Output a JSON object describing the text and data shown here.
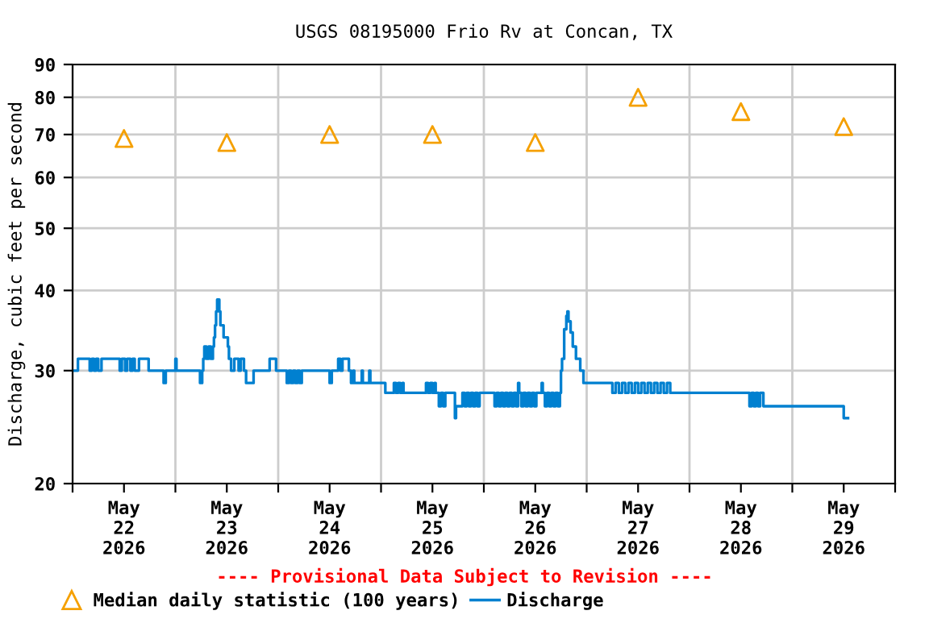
{
  "chart_data": {
    "type": "step",
    "title": "USGS 08195000 Frio Rv at Concan, TX",
    "ylabel": "Discharge, cubic feet per second",
    "annotations": [
      "---- Provisional Data Subject to Revision ----"
    ],
    "log": "y",
    "grid": true,
    "legend": "bottom",
    "ylim": [
      20,
      90
    ],
    "yticks": [
      20,
      30,
      40,
      50,
      60,
      70,
      80,
      90
    ],
    "xlim": [
      "2026-05-22T00:00",
      "2026-05-30T00:00"
    ],
    "xticks": [
      {
        "value": "2026-05-22T00:00",
        "label": null
      },
      {
        "value": "2026-05-22T12:00",
        "label": "May\n22\n2026"
      },
      {
        "value": "2026-05-23T00:00",
        "label": null
      },
      {
        "value": "2026-05-23T12:00",
        "label": "May\n23\n2026"
      },
      {
        "value": "2026-05-24T00:00",
        "label": null
      },
      {
        "value": "2026-05-24T12:00",
        "label": "May\n24\n2026"
      },
      {
        "value": "2026-05-25T00:00",
        "label": null
      },
      {
        "value": "2026-05-25T12:00",
        "label": "May\n25\n2026"
      },
      {
        "value": "2026-05-26T00:00",
        "label": null
      },
      {
        "value": "2026-05-26T12:00",
        "label": "May\n26\n2026"
      },
      {
        "value": "2026-05-27T00:00",
        "label": null
      },
      {
        "value": "2026-05-27T12:00",
        "label": "May\n27\n2026"
      },
      {
        "value": "2026-05-28T00:00",
        "label": null
      },
      {
        "value": "2026-05-28T12:00",
        "label": "May\n28\n2026"
      },
      {
        "value": "2026-05-29T00:00",
        "label": null
      },
      {
        "value": "2026-05-29T12:00",
        "label": "May\n29\n2026"
      },
      {
        "value": "2026-05-30T00:00",
        "label": null
      }
    ],
    "series": [
      {
        "name": "Median daily statistic (100 years)",
        "type": "scatter",
        "marker": "triangle",
        "color": "#f5a000",
        "x": [
          "2026-05-22T12:00",
          "2026-05-23T12:00",
          "2026-05-24T12:00",
          "2026-05-25T12:00",
          "2026-05-26T12:00",
          "2026-05-27T12:00",
          "2026-05-28T12:00",
          "2026-05-29T12:00"
        ],
        "values": [
          69,
          68,
          70,
          70,
          68,
          80,
          76,
          72
        ]
      },
      {
        "name": "Discharge",
        "marker": "none",
        "color": "#0080d0",
        "x": [
          "2026-05-22T00:00",
          "2026-05-22T01:15",
          "2026-05-22T04:00",
          "2026-05-22T04:30",
          "2026-05-22T05:00",
          "2026-05-22T05:30",
          "2026-05-22T06:00",
          "2026-05-22T06:45",
          "2026-05-22T11:00",
          "2026-05-22T11:30",
          "2026-05-22T12:15",
          "2026-05-22T12:45",
          "2026-05-22T13:30",
          "2026-05-22T14:00",
          "2026-05-22T14:30",
          "2026-05-22T15:30",
          "2026-05-22T17:45",
          "2026-05-22T21:15",
          "2026-05-22T21:45",
          "2026-05-23T00:00",
          "2026-05-23T00:15",
          "2026-05-23T05:45",
          "2026-05-23T06:15",
          "2026-05-23T06:30",
          "2026-05-23T06:45",
          "2026-05-23T07:15",
          "2026-05-23T07:45",
          "2026-05-23T08:15",
          "2026-05-23T08:45",
          "2026-05-23T09:00",
          "2026-05-23T09:15",
          "2026-05-23T09:30",
          "2026-05-23T09:45",
          "2026-05-23T10:15",
          "2026-05-23T10:30",
          "2026-05-23T11:15",
          "2026-05-23T12:15",
          "2026-05-23T12:30",
          "2026-05-23T13:00",
          "2026-05-23T13:45",
          "2026-05-23T14:45",
          "2026-05-23T15:15",
          "2026-05-23T16:00",
          "2026-05-23T16:30",
          "2026-05-23T18:15",
          "2026-05-23T22:00",
          "2026-05-23T23:30",
          "2026-05-24T02:00",
          "2026-05-24T02:30",
          "2026-05-24T03:00",
          "2026-05-24T03:30",
          "2026-05-24T04:00",
          "2026-05-24T04:30",
          "2026-05-24T05:00",
          "2026-05-24T05:30",
          "2026-05-24T12:00",
          "2026-05-24T12:30",
          "2026-05-24T14:00",
          "2026-05-24T14:30",
          "2026-05-24T15:00",
          "2026-05-24T16:30",
          "2026-05-24T17:00",
          "2026-05-24T17:30",
          "2026-05-24T17:45",
          "2026-05-24T19:30",
          "2026-05-24T19:45",
          "2026-05-24T21:15",
          "2026-05-24T21:30",
          "2026-05-25T01:00",
          "2026-05-25T03:00",
          "2026-05-25T03:30",
          "2026-05-25T04:00",
          "2026-05-25T04:30",
          "2026-05-25T05:00",
          "2026-05-25T05:15",
          "2026-05-25T10:30",
          "2026-05-25T11:00",
          "2026-05-25T11:30",
          "2026-05-25T12:00",
          "2026-05-25T12:30",
          "2026-05-25T12:45",
          "2026-05-25T13:30",
          "2026-05-25T14:00",
          "2026-05-25T14:30",
          "2026-05-25T15:00",
          "2026-05-25T17:15",
          "2026-05-25T17:30",
          "2026-05-25T19:00",
          "2026-05-25T19:30",
          "2026-05-25T20:00",
          "2026-05-25T20:30",
          "2026-05-25T21:00",
          "2026-05-25T21:30",
          "2026-05-25T22:00",
          "2026-05-25T22:30",
          "2026-05-25T23:00",
          "2026-05-26T02:30",
          "2026-05-26T03:00",
          "2026-05-26T03:30",
          "2026-05-26T04:00",
          "2026-05-26T04:30",
          "2026-05-26T05:00",
          "2026-05-26T05:30",
          "2026-05-26T06:00",
          "2026-05-26T06:30",
          "2026-05-26T07:00",
          "2026-05-26T07:30",
          "2026-05-26T08:00",
          "2026-05-26T08:15",
          "2026-05-26T08:45",
          "2026-05-26T09:15",
          "2026-05-26T09:45",
          "2026-05-26T10:15",
          "2026-05-26T10:45",
          "2026-05-26T11:15",
          "2026-05-26T11:45",
          "2026-05-26T12:15",
          "2026-05-26T13:30",
          "2026-05-26T13:45",
          "2026-05-26T14:15",
          "2026-05-26T14:45",
          "2026-05-26T15:15",
          "2026-05-26T15:45",
          "2026-05-26T16:15",
          "2026-05-26T16:45",
          "2026-05-26T17:15",
          "2026-05-26T17:45",
          "2026-05-26T18:00",
          "2026-05-26T18:15",
          "2026-05-26T18:45",
          "2026-05-26T19:15",
          "2026-05-26T19:30",
          "2026-05-26T19:45",
          "2026-05-26T20:15",
          "2026-05-26T20:45",
          "2026-05-26T21:30",
          "2026-05-26T22:30",
          "2026-05-26T23:15",
          "2026-05-27T06:00",
          "2026-05-27T06:45",
          "2026-05-27T07:30",
          "2026-05-27T08:15",
          "2026-05-27T09:00",
          "2026-05-27T09:45",
          "2026-05-27T10:30",
          "2026-05-27T11:15",
          "2026-05-27T12:00",
          "2026-05-27T12:45",
          "2026-05-27T13:30",
          "2026-05-27T14:15",
          "2026-05-27T15:00",
          "2026-05-27T15:45",
          "2026-05-27T16:30",
          "2026-05-27T17:15",
          "2026-05-27T18:00",
          "2026-05-27T18:45",
          "2026-05-27T19:30",
          "2026-05-28T14:00",
          "2026-05-28T14:30",
          "2026-05-28T15:00",
          "2026-05-28T15:30",
          "2026-05-28T16:00",
          "2026-05-28T16:30",
          "2026-05-28T17:15",
          "2026-05-29T12:00",
          "2026-05-29T13:00"
        ],
        "values": [
          30,
          31.3,
          30,
          31.3,
          30,
          31.3,
          30,
          31.3,
          30,
          31.3,
          30,
          31.3,
          30,
          31.3,
          30,
          31.3,
          30,
          28.7,
          30,
          31.3,
          30,
          28.7,
          30,
          31.3,
          32.7,
          31.3,
          32.7,
          31.3,
          32.7,
          33.8,
          35.3,
          37.1,
          38.7,
          37.1,
          35.3,
          33.8,
          32.7,
          31.3,
          30,
          31.3,
          30,
          31.3,
          30,
          28.7,
          30,
          31.3,
          30,
          28.7,
          30,
          28.7,
          30,
          28.7,
          30,
          28.7,
          30,
          28.7,
          30,
          31.3,
          30,
          31.3,
          30,
          28.7,
          30,
          28.7,
          30,
          28.7,
          30,
          28.7,
          27.7,
          28.7,
          27.7,
          28.7,
          27.7,
          28.7,
          27.7,
          28.7,
          27.7,
          28.7,
          27.7,
          28.7,
          27.7,
          26.4,
          27.7,
          26.4,
          27.7,
          25.3,
          26.4,
          27.7,
          26.4,
          27.7,
          26.4,
          27.7,
          26.4,
          27.7,
          26.4,
          27.7,
          26.4,
          27.7,
          26.4,
          27.7,
          26.4,
          27.7,
          26.4,
          27.7,
          26.4,
          27.7,
          26.4,
          28.7,
          27.7,
          26.4,
          27.7,
          26.4,
          27.7,
          26.4,
          27.7,
          26.4,
          27.7,
          28.7,
          27.7,
          26.4,
          27.7,
          26.4,
          27.7,
          26.4,
          27.7,
          26.4,
          27.7,
          30,
          31.3,
          34.8,
          36.5,
          37.1,
          35.8,
          34.4,
          32.7,
          31.3,
          30,
          28.7,
          27.7,
          28.7,
          27.7,
          28.7,
          27.7,
          28.7,
          27.7,
          28.7,
          27.7,
          28.7,
          27.7,
          28.7,
          27.7,
          28.7,
          27.7,
          28.7,
          27.7,
          28.7,
          27.7,
          26.4,
          27.7,
          26.4,
          27.7,
          26.4,
          27.7,
          26.4,
          25.3,
          25.3
        ]
      }
    ]
  }
}
